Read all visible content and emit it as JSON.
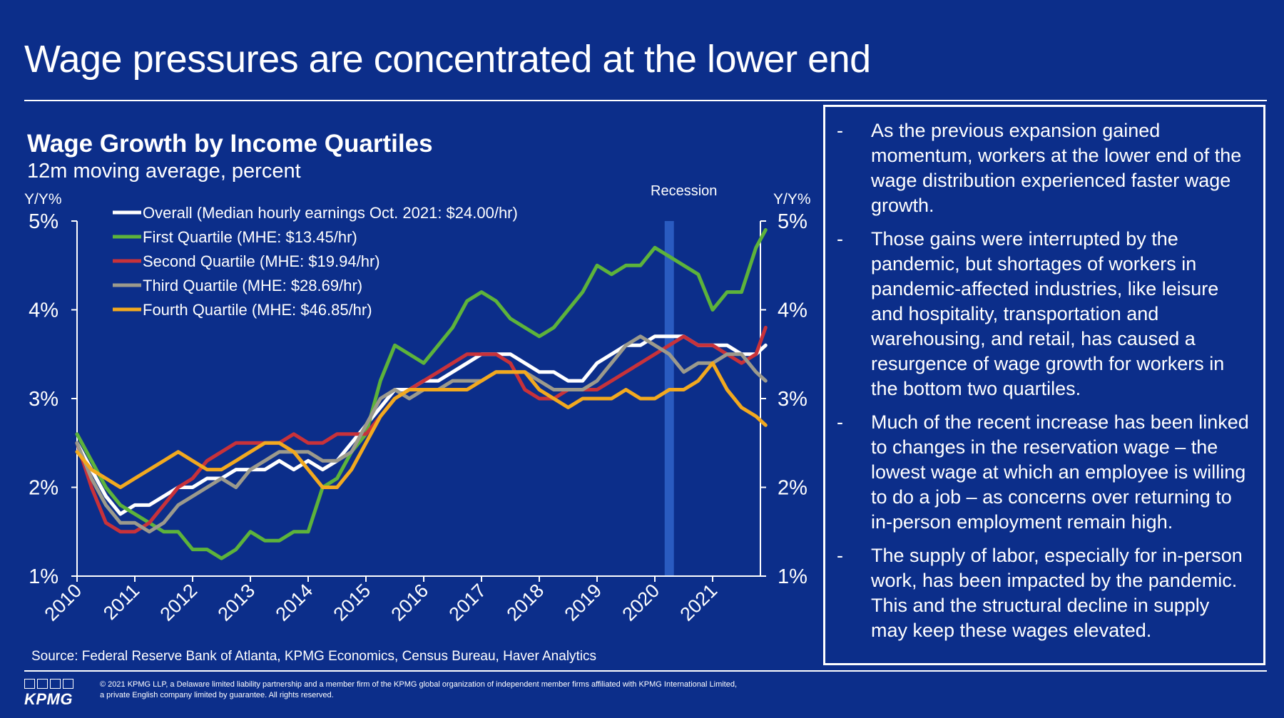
{
  "title": "Wage pressures are concentrated at the lower end",
  "chart_title": "Wage Growth by Income Quartiles",
  "chart_subtitle": "12m moving average, percent",
  "left_axis_title": "Y/Y%",
  "right_axis_title": "Y/Y%",
  "recession_label": "Recession",
  "source": "Source: Federal Reserve Bank of Atlanta, KPMG Economics, Census Bureau, Haver Analytics",
  "bullets": [
    {
      "dash": "-",
      "text": "As the previous expansion gained momentum, workers at the lower end of the wage distribution experienced faster wage growth."
    },
    {
      "dash": "-",
      "text": "Those gains were interrupted by the pandemic, but shortages of workers in pandemic-affected industries, like leisure and hospitality, transportation and warehousing, and retail, has caused a resurgence of wage growth for workers in the bottom two quartiles."
    },
    {
      "dash": "-",
      "text": "Much of the recent increase has been linked to changes in the reservation wage – the lowest wage at which an employee is willing to do a job – as concerns over returning to in-person employment remain high."
    },
    {
      "dash": "-",
      "text": "The supply of labor, especially for in-person work, has been impacted by the pandemic. This and the structural decline in supply may keep these wages elevated."
    }
  ],
  "logo_text": "KPMG",
  "copyright": "© 2021 KPMG LLP, a Delaware limited liability partnership and a member firm of the KPMG global organization of independent member firms affiliated with KPMG International Limited, a private English company limited by guarantee. All rights reserved.",
  "colors": {
    "background": "#0C2E8A",
    "overall": "#FFFFFF",
    "first": "#5DB33B",
    "second": "#C8323A",
    "third": "#9C9A8C",
    "fourth": "#F2A91F",
    "recession": "#2A5BC0"
  },
  "chart_data": {
    "type": "line",
    "xlabel": "",
    "ylabel": "Y/Y%",
    "x_tick_labels": [
      "2010",
      "2011",
      "2012",
      "2013",
      "2014",
      "2015",
      "2016",
      "2017",
      "2018",
      "2019",
      "2020",
      "2021"
    ],
    "y_tick_labels": [
      "1%",
      "2%",
      "3%",
      "4%",
      "5%"
    ],
    "ylim": [
      1,
      5
    ],
    "xlim": [
      2010.0,
      2021.917
    ],
    "recession": [
      2020.17,
      2020.33
    ],
    "legend_position": "top-left",
    "series": [
      {
        "name": "Overall (Median hourly earnings Oct. 2021: $24.00/hr)",
        "color": "#FFFFFF",
        "x": [
          2010.0,
          2010.25,
          2010.5,
          2010.75,
          2011.0,
          2011.25,
          2011.5,
          2011.75,
          2012.0,
          2012.25,
          2012.5,
          2012.75,
          2013.0,
          2013.25,
          2013.5,
          2013.75,
          2014.0,
          2014.25,
          2014.5,
          2014.75,
          2015.0,
          2015.25,
          2015.5,
          2015.75,
          2016.0,
          2016.25,
          2016.5,
          2016.75,
          2017.0,
          2017.25,
          2017.5,
          2017.75,
          2018.0,
          2018.25,
          2018.5,
          2018.75,
          2019.0,
          2019.25,
          2019.5,
          2019.75,
          2020.0,
          2020.25,
          2020.5,
          2020.75,
          2021.0,
          2021.25,
          2021.5,
          2021.75,
          2021.917
        ],
        "y": [
          2.5,
          2.2,
          1.9,
          1.7,
          1.8,
          1.8,
          1.9,
          2.0,
          2.0,
          2.1,
          2.1,
          2.2,
          2.2,
          2.2,
          2.3,
          2.2,
          2.3,
          2.2,
          2.3,
          2.5,
          2.7,
          2.9,
          3.1,
          3.1,
          3.2,
          3.2,
          3.3,
          3.4,
          3.5,
          3.5,
          3.5,
          3.4,
          3.3,
          3.3,
          3.2,
          3.2,
          3.4,
          3.5,
          3.6,
          3.6,
          3.7,
          3.7,
          3.7,
          3.6,
          3.6,
          3.6,
          3.5,
          3.5,
          3.6
        ]
      },
      {
        "name": "First Quartile (MHE: $13.45/hr)",
        "color": "#5DB33B",
        "x": [
          2010.0,
          2010.25,
          2010.5,
          2010.75,
          2011.0,
          2011.25,
          2011.5,
          2011.75,
          2012.0,
          2012.25,
          2012.5,
          2012.75,
          2013.0,
          2013.25,
          2013.5,
          2013.75,
          2014.0,
          2014.25,
          2014.5,
          2014.75,
          2015.0,
          2015.25,
          2015.5,
          2015.75,
          2016.0,
          2016.25,
          2016.5,
          2016.75,
          2017.0,
          2017.25,
          2017.5,
          2017.75,
          2018.0,
          2018.25,
          2018.5,
          2018.75,
          2019.0,
          2019.25,
          2019.5,
          2019.75,
          2020.0,
          2020.25,
          2020.5,
          2020.75,
          2021.0,
          2021.25,
          2021.5,
          2021.75,
          2021.917
        ],
        "y": [
          2.6,
          2.3,
          2.0,
          1.8,
          1.7,
          1.6,
          1.5,
          1.5,
          1.3,
          1.3,
          1.2,
          1.3,
          1.5,
          1.4,
          1.4,
          1.5,
          1.5,
          2.0,
          2.1,
          2.4,
          2.6,
          3.2,
          3.6,
          3.5,
          3.4,
          3.6,
          3.8,
          4.1,
          4.2,
          4.1,
          3.9,
          3.8,
          3.7,
          3.8,
          4.0,
          4.2,
          4.5,
          4.4,
          4.5,
          4.5,
          4.7,
          4.6,
          4.5,
          4.4,
          4.0,
          4.2,
          4.2,
          4.7,
          4.9
        ]
      },
      {
        "name": "Second Quartile (MHE: $19.94/hr)",
        "color": "#C8323A",
        "x": [
          2010.0,
          2010.25,
          2010.5,
          2010.75,
          2011.0,
          2011.25,
          2011.5,
          2011.75,
          2012.0,
          2012.25,
          2012.5,
          2012.75,
          2013.0,
          2013.25,
          2013.5,
          2013.75,
          2014.0,
          2014.25,
          2014.5,
          2014.75,
          2015.0,
          2015.25,
          2015.5,
          2015.75,
          2016.0,
          2016.25,
          2016.5,
          2016.75,
          2017.0,
          2017.25,
          2017.5,
          2017.75,
          2018.0,
          2018.25,
          2018.5,
          2018.75,
          2019.0,
          2019.25,
          2019.5,
          2019.75,
          2020.0,
          2020.25,
          2020.5,
          2020.75,
          2021.0,
          2021.25,
          2021.5,
          2021.75,
          2021.917
        ],
        "y": [
          2.5,
          2.0,
          1.6,
          1.5,
          1.5,
          1.6,
          1.8,
          2.0,
          2.1,
          2.3,
          2.4,
          2.5,
          2.5,
          2.5,
          2.5,
          2.6,
          2.5,
          2.5,
          2.6,
          2.6,
          2.6,
          2.8,
          3.0,
          3.1,
          3.2,
          3.3,
          3.4,
          3.5,
          3.5,
          3.5,
          3.4,
          3.1,
          3.0,
          3.0,
          3.1,
          3.1,
          3.1,
          3.2,
          3.3,
          3.4,
          3.5,
          3.6,
          3.7,
          3.6,
          3.6,
          3.5,
          3.4,
          3.5,
          3.8
        ]
      },
      {
        "name": "Third Quartile (MHE: $28.69/hr)",
        "color": "#9C9A8C",
        "x": [
          2010.0,
          2010.25,
          2010.5,
          2010.75,
          2011.0,
          2011.25,
          2011.5,
          2011.75,
          2012.0,
          2012.25,
          2012.5,
          2012.75,
          2013.0,
          2013.25,
          2013.5,
          2013.75,
          2014.0,
          2014.25,
          2014.5,
          2014.75,
          2015.0,
          2015.25,
          2015.5,
          2015.75,
          2016.0,
          2016.25,
          2016.5,
          2016.75,
          2017.0,
          2017.25,
          2017.5,
          2017.75,
          2018.0,
          2018.25,
          2018.5,
          2018.75,
          2019.0,
          2019.25,
          2019.5,
          2019.75,
          2020.0,
          2020.25,
          2020.5,
          2020.75,
          2021.0,
          2021.25,
          2021.5,
          2021.75,
          2021.917
        ],
        "y": [
          2.5,
          2.1,
          1.8,
          1.6,
          1.6,
          1.5,
          1.6,
          1.8,
          1.9,
          2.0,
          2.1,
          2.0,
          2.2,
          2.3,
          2.4,
          2.4,
          2.4,
          2.3,
          2.3,
          2.4,
          2.7,
          3.0,
          3.1,
          3.0,
          3.1,
          3.1,
          3.2,
          3.2,
          3.2,
          3.3,
          3.3,
          3.3,
          3.2,
          3.1,
          3.1,
          3.1,
          3.2,
          3.4,
          3.6,
          3.7,
          3.6,
          3.5,
          3.3,
          3.4,
          3.4,
          3.5,
          3.5,
          3.3,
          3.2
        ]
      },
      {
        "name": "Fourth Quartile (MHE: $46.85/hr)",
        "color": "#F2A91F",
        "x": [
          2010.0,
          2010.25,
          2010.5,
          2010.75,
          2011.0,
          2011.25,
          2011.5,
          2011.75,
          2012.0,
          2012.25,
          2012.5,
          2012.75,
          2013.0,
          2013.25,
          2013.5,
          2013.75,
          2014.0,
          2014.25,
          2014.5,
          2014.75,
          2015.0,
          2015.25,
          2015.5,
          2015.75,
          2016.0,
          2016.25,
          2016.5,
          2016.75,
          2017.0,
          2017.25,
          2017.5,
          2017.75,
          2018.0,
          2018.25,
          2018.5,
          2018.75,
          2019.0,
          2019.25,
          2019.5,
          2019.75,
          2020.0,
          2020.25,
          2020.5,
          2020.75,
          2021.0,
          2021.25,
          2021.5,
          2021.75,
          2021.917
        ],
        "y": [
          2.4,
          2.2,
          2.1,
          2.0,
          2.1,
          2.2,
          2.3,
          2.4,
          2.3,
          2.2,
          2.2,
          2.3,
          2.4,
          2.5,
          2.5,
          2.4,
          2.2,
          2.0,
          2.0,
          2.2,
          2.5,
          2.8,
          3.0,
          3.1,
          3.1,
          3.1,
          3.1,
          3.1,
          3.2,
          3.3,
          3.3,
          3.3,
          3.1,
          3.0,
          2.9,
          3.0,
          3.0,
          3.0,
          3.1,
          3.0,
          3.0,
          3.1,
          3.1,
          3.2,
          3.4,
          3.1,
          2.9,
          2.8,
          2.7
        ]
      }
    ]
  }
}
